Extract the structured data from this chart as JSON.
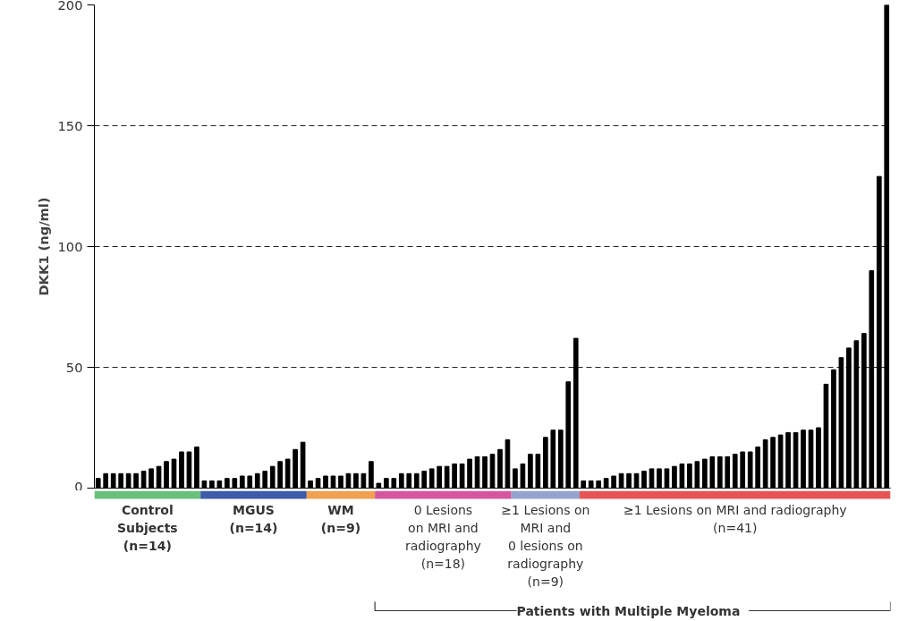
{
  "chart_data": {
    "type": "bar",
    "ylabel": "DKK1 (ng/ml)",
    "categories": [
      null,
      null,
      null,
      null,
      null,
      null,
      null,
      null,
      null,
      null,
      null,
      null,
      null,
      null,
      null,
      null,
      null,
      null,
      null,
      null,
      null,
      null,
      null,
      null,
      null,
      null,
      null,
      null,
      null,
      null,
      null,
      null,
      null,
      null,
      null,
      null,
      null,
      null,
      null,
      null,
      null,
      null,
      null,
      null,
      null,
      null,
      null,
      null,
      null,
      null,
      null,
      null,
      null,
      null,
      null,
      null,
      null,
      null,
      null,
      null,
      null,
      null,
      null,
      null,
      null,
      null,
      null,
      null,
      null,
      null,
      null,
      null,
      null,
      null,
      null,
      null,
      null,
      null,
      null,
      null,
      null,
      null,
      null,
      null,
      null,
      null,
      null,
      null,
      null,
      null,
      null,
      null,
      null,
      null,
      null,
      null,
      null,
      null,
      null,
      null,
      null,
      null,
      null,
      null,
      null
    ],
    "values": [
      4,
      6,
      6,
      6,
      6,
      6,
      7,
      8,
      9,
      11,
      12,
      15,
      15,
      17,
      3,
      3,
      3,
      4,
      4,
      5,
      5,
      6,
      7,
      9,
      11,
      12,
      16,
      19,
      3,
      4,
      5,
      5,
      5,
      6,
      6,
      6,
      11,
      2,
      4,
      4,
      6,
      6,
      6,
      7,
      8,
      9,
      9,
      10,
      10,
      12,
      13,
      13,
      14,
      16,
      20,
      8,
      10,
      14,
      14,
      21,
      24,
      24,
      44,
      62,
      3,
      3,
      3,
      4,
      5,
      6,
      6,
      6,
      7,
      8,
      8,
      8,
      9,
      10,
      10,
      11,
      12,
      13,
      13,
      13,
      14,
      15,
      15,
      17,
      20,
      21,
      22,
      23,
      23,
      24,
      24,
      25,
      43,
      49,
      54,
      58,
      61,
      64,
      90,
      129,
      200
    ],
    "color": "#000000",
    "ylim": [
      0,
      200
    ],
    "yticks": [
      0,
      50,
      100,
      150,
      200
    ],
    "grid": "y",
    "tick_labels": "y",
    "annotations": [
      "Control\nSubjects\n(n=14)",
      "MGUS\n(n=14)",
      "WM\n(n=9)",
      "0 Lesions\non MRI and\nradiography\n(n=18)",
      "≥1 Lesions on\nMRI and\n0 lesions on\nradiography\n(n=9)",
      "≥1 Lesions on MRI and radiography\n(n=41)",
      "Patients with Multiple Myeloma"
    ]
  }
}
